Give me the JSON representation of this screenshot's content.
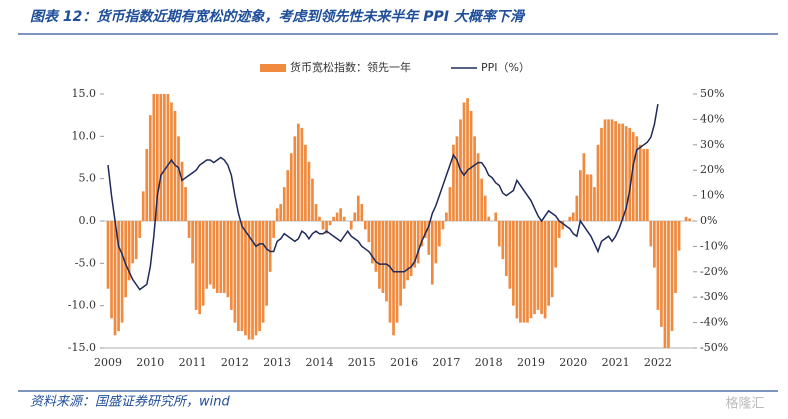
{
  "chart_data": {
    "type": "bar",
    "title": "图表 12：货币指数近期有宽松的迹象，考虑到领先性未来半年 PPI 大概率下滑",
    "source": "资料来源：国盛证券研究所，wind",
    "watermark": "格隆汇",
    "categories": [
      "2009",
      null,
      null,
      null,
      null,
      null,
      null,
      null,
      null,
      null,
      null,
      null,
      "2010",
      null,
      null,
      null,
      null,
      null,
      null,
      null,
      null,
      null,
      null,
      null,
      "2011",
      null,
      null,
      null,
      null,
      null,
      null,
      null,
      null,
      null,
      null,
      null,
      "2012",
      null,
      null,
      null,
      null,
      null,
      null,
      null,
      null,
      null,
      null,
      null,
      "2013",
      null,
      null,
      null,
      null,
      null,
      null,
      null,
      null,
      null,
      null,
      null,
      "2014",
      null,
      null,
      null,
      null,
      null,
      null,
      null,
      null,
      null,
      null,
      null,
      "2015",
      null,
      null,
      null,
      null,
      null,
      null,
      null,
      null,
      null,
      null,
      null,
      "2016",
      null,
      null,
      null,
      null,
      null,
      null,
      null,
      null,
      null,
      null,
      null,
      "2017",
      null,
      null,
      null,
      null,
      null,
      null,
      null,
      null,
      null,
      null,
      null,
      "2018",
      null,
      null,
      null,
      null,
      null,
      null,
      null,
      null,
      null,
      null,
      null,
      "2019",
      null,
      null,
      null,
      null,
      null,
      null,
      null,
      null,
      null,
      null,
      null,
      "2020",
      null,
      null,
      null,
      null,
      null,
      null,
      null,
      null,
      null,
      null,
      null,
      "2021",
      null,
      null,
      null,
      null,
      null,
      null,
      null,
      null,
      null,
      null,
      null,
      "2022",
      null,
      null,
      null,
      null,
      null,
      null,
      null,
      null,
      null
    ],
    "series": [
      {
        "name": "货币宽松指数：领先一年",
        "type": "bar",
        "color": "#ef8a3e",
        "values": [
          -8,
          -11.5,
          -13.5,
          -13,
          -12,
          -9,
          -7,
          -5,
          -4.5,
          -2,
          3.5,
          8.5,
          12.5,
          15,
          15,
          15,
          15,
          15,
          14,
          13,
          10,
          7,
          4,
          -2,
          -5,
          -10.5,
          -11,
          -10,
          -8,
          -7.5,
          -8,
          -8.5,
          -8.5,
          -8.5,
          -9,
          -10.5,
          -12,
          -13,
          -13,
          -13.5,
          -14,
          -14,
          -13.5,
          -13,
          -12,
          -10,
          -6,
          -2,
          1.5,
          2,
          4,
          6,
          8,
          10,
          11.5,
          11,
          9,
          7,
          5,
          2,
          0.5,
          -1,
          -1.5,
          -0.5,
          0.5,
          1,
          1.5,
          0.5,
          0,
          -1,
          1,
          3,
          2,
          -1,
          -2.5,
          -5,
          -6,
          -8,
          -8.5,
          -9.5,
          -12,
          -13.5,
          -12,
          -10,
          -8,
          -7,
          -6.5,
          -5.5,
          -5,
          -3,
          -2,
          -4,
          -7.5,
          -5,
          -3,
          -1,
          1,
          4,
          9,
          10,
          12,
          14,
          14.5,
          13,
          10,
          8,
          5,
          3,
          0.5,
          0,
          1,
          -3,
          -4.5,
          -6.5,
          -8,
          -10,
          -11.5,
          -12,
          -12,
          -12,
          -11.5,
          -11,
          -10.5,
          -11,
          -11.5,
          -10,
          -9,
          -5.5,
          -2,
          -1,
          0,
          0.5,
          1,
          3,
          6,
          8,
          5.5,
          5.5,
          4,
          9,
          11,
          12,
          12,
          12,
          11.8,
          11.5,
          11.5,
          11.2,
          11,
          10.5,
          10,
          9,
          8.5,
          8.5,
          -3,
          -5.5,
          -10.5,
          -12.5,
          -15,
          -15,
          -13,
          -8.5,
          -3.5,
          0,
          0.5,
          0.3
        ]
      },
      {
        "name": "PPI（%）",
        "type": "line",
        "axis": "y2",
        "color": "#1f2a5c",
        "values": [
          22,
          10,
          0,
          -10,
          -13,
          -17,
          -20,
          -23,
          -25,
          -27,
          -26,
          -25,
          -18,
          -6,
          10,
          18,
          20,
          22,
          24,
          22,
          21,
          16,
          17,
          18,
          19,
          20,
          22,
          23,
          24,
          24,
          23,
          24,
          25,
          24,
          22,
          18,
          10,
          3,
          -2,
          -4,
          -6,
          -8,
          -10,
          -9,
          -9,
          -11,
          -12,
          -12,
          -8,
          -7,
          -5,
          -6,
          -7,
          -8,
          -7,
          -4,
          -5,
          -7,
          -5,
          -4,
          -5,
          -5,
          -4,
          -5,
          -6,
          -7,
          -8,
          -6,
          -4,
          -6,
          -7,
          -8,
          -10,
          -11,
          -12,
          -14,
          -16,
          -17,
          -17,
          -17,
          -18,
          -20,
          -20,
          -20,
          -20,
          -19,
          -18,
          -16,
          -12,
          -8,
          -5,
          -2,
          3,
          6,
          10,
          14,
          18,
          22,
          26,
          24,
          20,
          18,
          20,
          21,
          22,
          23,
          23,
          21,
          18,
          17,
          15,
          14,
          11,
          10,
          11,
          12,
          16,
          14,
          12,
          10,
          8,
          5,
          2,
          0,
          2,
          4,
          3,
          2,
          0,
          -1,
          -2,
          -3,
          -5,
          -6,
          0,
          -2,
          -4,
          -6,
          -9,
          -12,
          -8,
          -7,
          -6,
          -8,
          -6,
          -3,
          1,
          5,
          12,
          22,
          28,
          29,
          30,
          31,
          33,
          38,
          46,
          null,
          null,
          null,
          null,
          null,
          null,
          null,
          null,
          null
        ]
      }
    ],
    "ylim": [
      -15,
      15
    ],
    "yticks": [
      {
        "value": -15,
        "label": "-15.0"
      },
      {
        "value": -10,
        "label": "-10.0"
      },
      {
        "value": -5,
        "label": "-5.0"
      },
      {
        "value": 0,
        "label": "0.0"
      },
      {
        "value": 5,
        "label": "5.0"
      },
      {
        "value": 10,
        "label": "10.0"
      },
      {
        "value": 15,
        "label": "15.0"
      }
    ],
    "y2lim": [
      -50,
      50
    ],
    "y2ticks": [
      {
        "value": -50,
        "label": "-50%"
      },
      {
        "value": -40,
        "label": "-40%"
      },
      {
        "value": -30,
        "label": "-30%"
      },
      {
        "value": -20,
        "label": "-20%"
      },
      {
        "value": -10,
        "label": "-10%"
      },
      {
        "value": 0,
        "label": "0%"
      },
      {
        "value": 10,
        "label": "10%"
      },
      {
        "value": 20,
        "label": "20%"
      },
      {
        "value": 30,
        "label": "30%"
      },
      {
        "value": 40,
        "label": "40%"
      },
      {
        "value": 50,
        "label": "50%"
      }
    ]
  }
}
